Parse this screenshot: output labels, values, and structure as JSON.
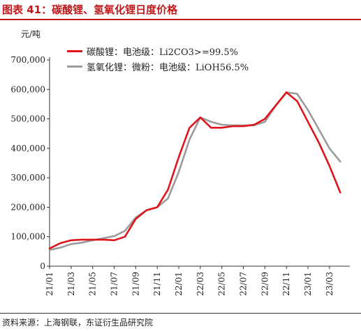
{
  "title": "图表 41：碳酸锂、氢氧化锂日度价格",
  "source": "资料来源：上海钢联，东证衍生品研究院",
  "colors": {
    "title": "#c0181a",
    "series1": "#e0141b",
    "series2": "#9b9b9b"
  },
  "chart_data": {
    "type": "line",
    "ylabel": "元/吨",
    "ylim": [
      0,
      700000
    ],
    "yticks": [
      "0",
      "100,000",
      "200,000",
      "300,000",
      "400,000",
      "500,000",
      "600,000",
      "700,000"
    ],
    "ytick_values": [
      0,
      100000,
      200000,
      300000,
      400000,
      500000,
      600000,
      700000
    ],
    "xticks": [
      "21/01",
      "21/03",
      "21/05",
      "21/07",
      "21/09",
      "21/11",
      "22/01",
      "22/03",
      "22/05",
      "22/07",
      "22/09",
      "22/11",
      "23/01",
      "23/03"
    ],
    "legend_position": "top-left",
    "grid": false,
    "series": [
      {
        "name": "碳酸锂：电池级：Li2CO3>=99.5%",
        "color": "#e0141b",
        "points": [
          [
            "21/01",
            60000
          ],
          [
            "21/02",
            78000
          ],
          [
            "21/03",
            88000
          ],
          [
            "21/04",
            90000
          ],
          [
            "21/05",
            90000
          ],
          [
            "21/06",
            90000
          ],
          [
            "21/07",
            88000
          ],
          [
            "21/08",
            100000
          ],
          [
            "21/09",
            160000
          ],
          [
            "21/10",
            190000
          ],
          [
            "21/11",
            200000
          ],
          [
            "21/12",
            260000
          ],
          [
            "22/01",
            370000
          ],
          [
            "22/02",
            470000
          ],
          [
            "22/03",
            505000
          ],
          [
            "22/04",
            470000
          ],
          [
            "22/05",
            470000
          ],
          [
            "22/06",
            475000
          ],
          [
            "22/07",
            475000
          ],
          [
            "22/08",
            480000
          ],
          [
            "22/09",
            500000
          ],
          [
            "22/10",
            545000
          ],
          [
            "22/11",
            590000
          ],
          [
            "22/12",
            560000
          ],
          [
            "23/01",
            490000
          ],
          [
            "23/02",
            420000
          ],
          [
            "23/03",
            340000
          ],
          [
            "23/04",
            250000
          ]
        ]
      },
      {
        "name": "氢氧化锂：微粉：电池级：LiOH56.5%",
        "color": "#9b9b9b",
        "points": [
          [
            "21/01",
            55000
          ],
          [
            "21/02",
            63000
          ],
          [
            "21/03",
            75000
          ],
          [
            "21/04",
            80000
          ],
          [
            "21/05",
            88000
          ],
          [
            "21/06",
            95000
          ],
          [
            "21/07",
            102000
          ],
          [
            "21/08",
            120000
          ],
          [
            "21/09",
            165000
          ],
          [
            "21/10",
            190000
          ],
          [
            "21/11",
            200000
          ],
          [
            "21/12",
            230000
          ],
          [
            "22/01",
            320000
          ],
          [
            "22/02",
            430000
          ],
          [
            "22/03",
            505000
          ],
          [
            "22/04",
            490000
          ],
          [
            "22/05",
            480000
          ],
          [
            "22/06",
            478000
          ],
          [
            "22/07",
            478000
          ],
          [
            "22/08",
            478000
          ],
          [
            "22/09",
            490000
          ],
          [
            "22/10",
            545000
          ],
          [
            "22/11",
            590000
          ],
          [
            "22/12",
            585000
          ],
          [
            "23/01",
            530000
          ],
          [
            "23/02",
            465000
          ],
          [
            "23/03",
            400000
          ],
          [
            "23/04",
            355000
          ]
        ]
      }
    ]
  }
}
